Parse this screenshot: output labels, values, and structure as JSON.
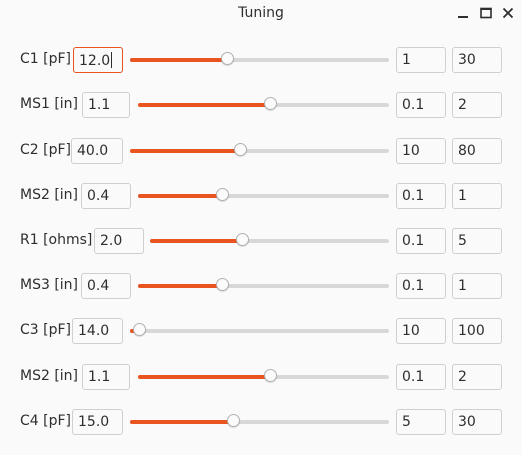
{
  "window": {
    "title": "Tuning"
  },
  "rows": [
    {
      "label": "C1 [pF]",
      "value": "12.0",
      "min": "1",
      "max": "30",
      "level": 0.38,
      "focused": true
    },
    {
      "label": "MS1 [in]",
      "value": "1.1",
      "min": "0.1",
      "max": "2",
      "level": 0.53
    },
    {
      "label": "C2 [pF]",
      "value": "40.0",
      "min": "10",
      "max": "80",
      "level": 0.43
    },
    {
      "label": "MS2 [in]",
      "value": "0.4",
      "min": "0.1",
      "max": "1",
      "level": 0.34
    },
    {
      "label": "R1 [ohms]",
      "value": "2.0",
      "min": "0.1",
      "max": "5",
      "level": 0.39
    },
    {
      "label": "MS3 [in]",
      "value": "0.4",
      "min": "0.1",
      "max": "1",
      "level": 0.34
    },
    {
      "label": "C3 [pF]",
      "value": "14.0",
      "min": "10",
      "max": "100",
      "level": 0.04
    },
    {
      "label": "MS2 [in]",
      "value": "1.1",
      "min": "0.1",
      "max": "2",
      "level": 0.53
    },
    {
      "label": "C4 [pF]",
      "value": "15.0",
      "min": "5",
      "max": "30",
      "level": 0.4
    }
  ],
  "colors": {
    "accent": "#e95420",
    "track": "#d8d8d8",
    "background": "#fafafa"
  },
  "icons": {
    "minimize": "minimize-icon",
    "maximize": "maximize-icon",
    "close": "close-icon"
  }
}
